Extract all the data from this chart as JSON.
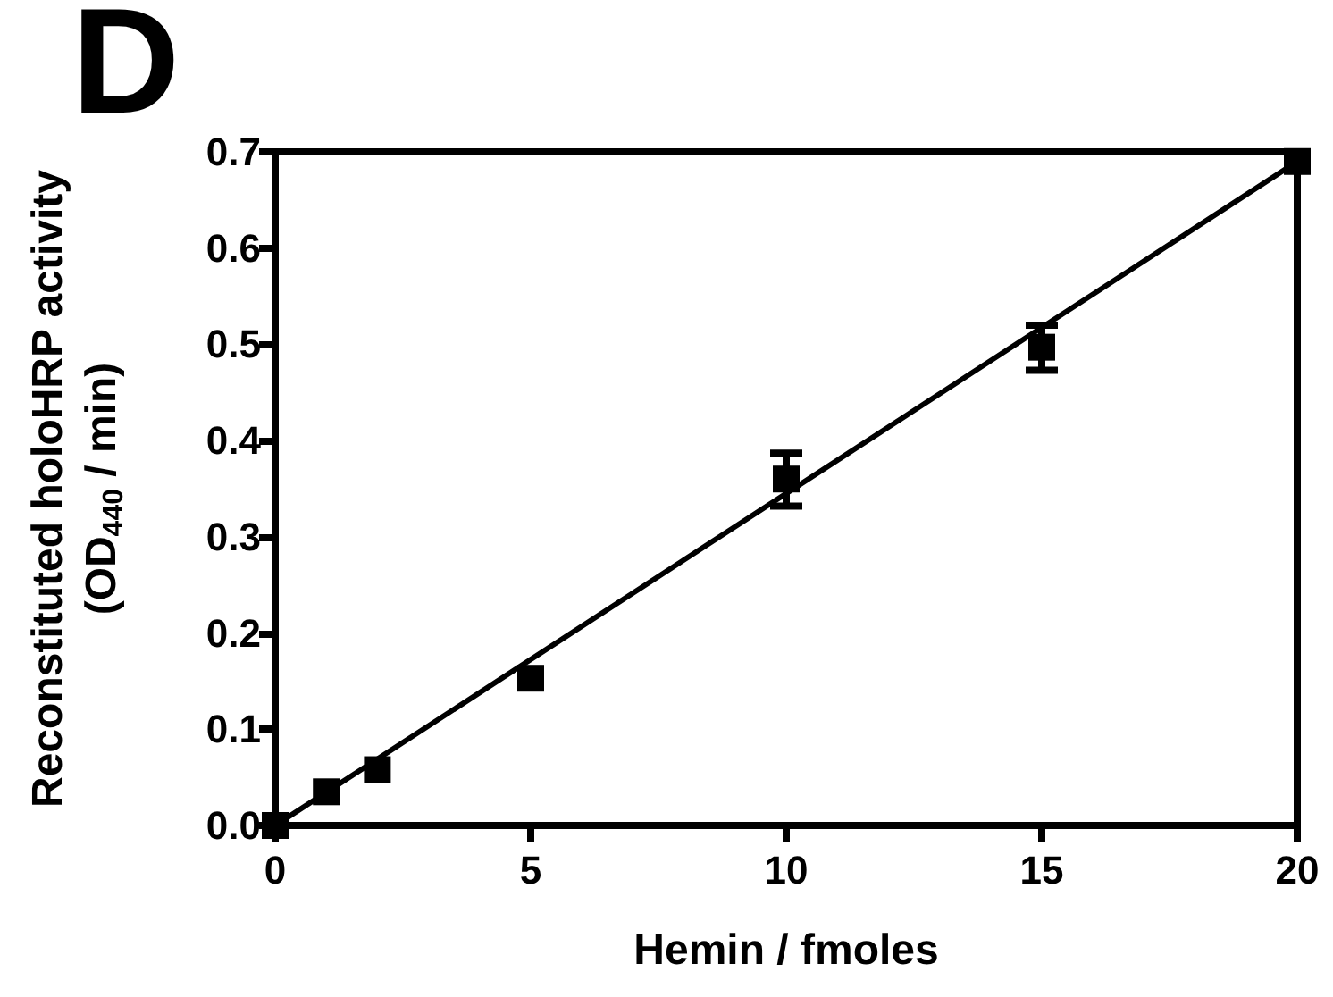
{
  "chart_data": {
    "type": "scatter",
    "xlabel": "Hemin / fmoles",
    "ylabel": "Reconstituted holoHRP activity\n(OD$_{440}$ / min)",
    "annotations": [
      "D"
    ],
    "xlim": [
      0,
      20
    ],
    "xticks": [
      0,
      5,
      10,
      15,
      20
    ],
    "ylim": [
      0,
      0.7
    ],
    "yticks": [
      {
        "value": 0,
        "label": "0.0"
      },
      0.1,
      0.2,
      0.3,
      0.4,
      0.5,
      0.6,
      0.7
    ],
    "grid": false,
    "series": [
      {
        "color": "#000000",
        "marker": "square",
        "x": [
          0,
          1,
          2,
          5,
          10,
          15,
          20
        ],
        "values": [
          0,
          0.035,
          0.058,
          0.153,
          0.36,
          0.497,
          0.69
        ],
        "errors": [
          null,
          null,
          null,
          null,
          [
            0.332,
            0.387
          ],
          [
            0.473,
            0.52
          ],
          null
        ]
      },
      {
        "type": "line",
        "color": "#000000",
        "marker": "none",
        "line_style": "solid",
        "x": [
          0,
          20
        ],
        "values": [
          0,
          0.69
        ]
      }
    ]
  }
}
